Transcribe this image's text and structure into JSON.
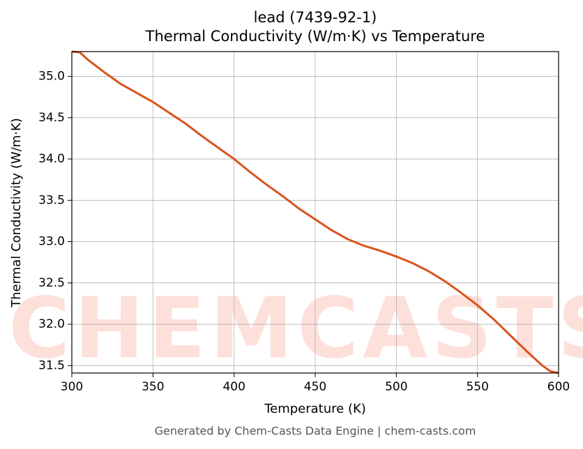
{
  "chart_data": {
    "type": "line",
    "title": "lead (7439-92-1)",
    "subtitle": "Thermal Conductivity (W/m·K) vs Temperature",
    "x_label": "Temperature (K)",
    "y_label": "Thermal Conductivity (W/m·K)",
    "watermark": "CHEMCASTS",
    "footer": "Generated by Chem-Casts Data Engine | chem-casts.com",
    "grid": true,
    "x": [
      300,
      305,
      310,
      320,
      330,
      340,
      350,
      360,
      370,
      380,
      390,
      400,
      410,
      420,
      430,
      440,
      450,
      460,
      470,
      480,
      490,
      500,
      510,
      520,
      530,
      540,
      550,
      560,
      570,
      580,
      590,
      595,
      600
    ],
    "series": [
      {
        "name": "lead",
        "color": "#d9531e",
        "values": [
          35.3,
          35.29,
          35.2,
          35.05,
          34.91,
          34.8,
          34.69,
          34.56,
          34.43,
          34.28,
          34.14,
          34.0,
          33.84,
          33.69,
          33.55,
          33.4,
          33.27,
          33.14,
          33.03,
          32.95,
          32.89,
          32.82,
          32.74,
          32.64,
          32.52,
          32.38,
          32.23,
          32.06,
          31.87,
          31.68,
          31.5,
          31.43,
          31.41
        ]
      }
    ],
    "xlim": [
      300,
      600
    ],
    "xticks": [
      300,
      350,
      400,
      450,
      500,
      550,
      600
    ],
    "ylim": [
      31.41,
      35.3
    ],
    "yticks": [
      31.5,
      {
        "value": 32,
        "label": "32.0"
      },
      32.5,
      {
        "value": 33,
        "label": "33.0"
      },
      33.5,
      {
        "value": 34,
        "label": "34.0"
      },
      34.5,
      {
        "value": 35,
        "label": "35.0"
      }
    ]
  }
}
